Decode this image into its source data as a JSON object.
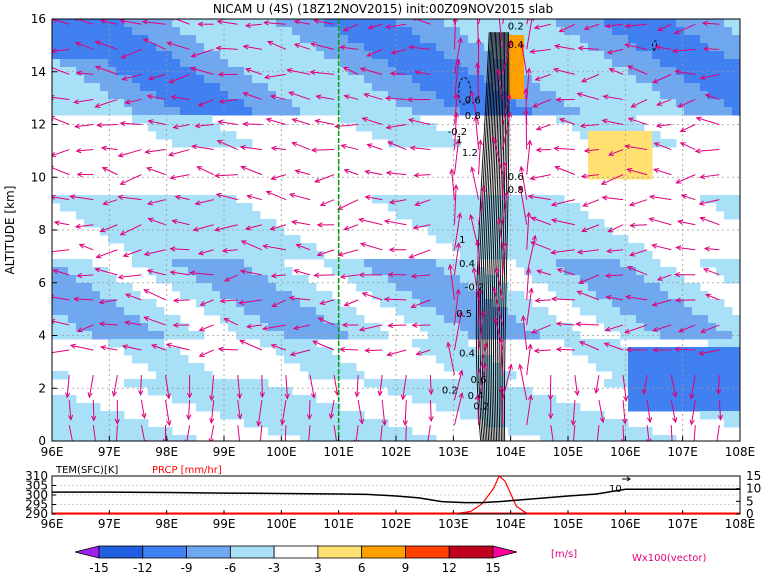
{
  "chart_data": {
    "type": "heatmap",
    "title": "NICAM U (4S) (18Z12NOV2015) init:00Z09NOV2015 slab",
    "ylabel": "ALTITUDE [km]",
    "xlim": [
      96,
      108
    ],
    "ylim": [
      0,
      16
    ],
    "x_tick_labels": [
      "96E",
      "97E",
      "98E",
      "99E",
      "100E",
      "101E",
      "102E",
      "103E",
      "104E",
      "105E",
      "106E",
      "107E",
      "108E"
    ],
    "y_tick_labels": [
      "0",
      "2",
      "4",
      "6",
      "8",
      "10",
      "12",
      "14",
      "16"
    ],
    "grid": true,
    "reference_line_lon": 101,
    "contour_labels": [
      "0.2",
      "0.4",
      "0.6",
      "0.8",
      "-0.2",
      "1",
      "1.2",
      "0.6",
      "0.8",
      "1",
      "0.4",
      "-0.2",
      "0.5",
      "0.4",
      "0.2",
      "0.6",
      "0.4",
      "0.2"
    ],
    "colorbar": {
      "labels": [
        "-15",
        "-12",
        "-9",
        "-6",
        "-3",
        "3",
        "6",
        "9",
        "12",
        "15"
      ],
      "unit": "[m/s]",
      "colors": [
        "#a020f0",
        "#2060e0",
        "#4080f0",
        "#70a8f0",
        "#a8e0f8",
        "#ffffff",
        "#ffe070",
        "#ffa000",
        "#ff4000",
        "#c00020",
        "#ff00a0"
      ]
    },
    "vector_label": "Wx100(vector)",
    "vector_color": "#e0007a",
    "u_field_samples": [
      {
        "lon": 97,
        "alt": 14.5,
        "u": -9
      },
      {
        "lon": 99,
        "alt": 14.5,
        "u": -6
      },
      {
        "lon": 101,
        "alt": 14.5,
        "u": -9
      },
      {
        "lon": 106,
        "alt": 14.5,
        "u": -6
      },
      {
        "lon": 98,
        "alt": 6,
        "u": -6
      },
      {
        "lon": 107,
        "alt": 2,
        "u": -9
      },
      {
        "lon": 105.5,
        "alt": 11,
        "u": 3
      }
    ],
    "lower_panel": {
      "legend_tem": "TEM(SFC)[K]",
      "legend_prcp": "PRCP [mm/hr]",
      "tem_color": "#000000",
      "prcp_color": "#ff0000",
      "left_axis_labels": [
        "310",
        "305",
        "300",
        "295",
        "290"
      ],
      "right_axis_labels": [
        "15",
        "10",
        "5",
        "0"
      ],
      "annotation": "10",
      "tem_lon": [
        96,
        97,
        98,
        99,
        100,
        101,
        101.5,
        102,
        102.4,
        102.8,
        103.2,
        103.5,
        103.8,
        104.2,
        104.6,
        105,
        105.5,
        106,
        107,
        108
      ],
      "tem_values": [
        301.5,
        301.5,
        301.3,
        301,
        300.8,
        300.5,
        300.3,
        299.5,
        298.5,
        296.5,
        296,
        296,
        296.5,
        297.5,
        298.5,
        299.5,
        300.5,
        303,
        303,
        303
      ],
      "prcp_lon": [
        96,
        103,
        103.3,
        103.5,
        103.7,
        103.8,
        103.9,
        104,
        104.1,
        104.3,
        108
      ],
      "prcp_values": [
        0,
        0,
        1,
        4,
        10,
        15,
        13,
        8,
        3,
        0,
        0
      ]
    }
  }
}
